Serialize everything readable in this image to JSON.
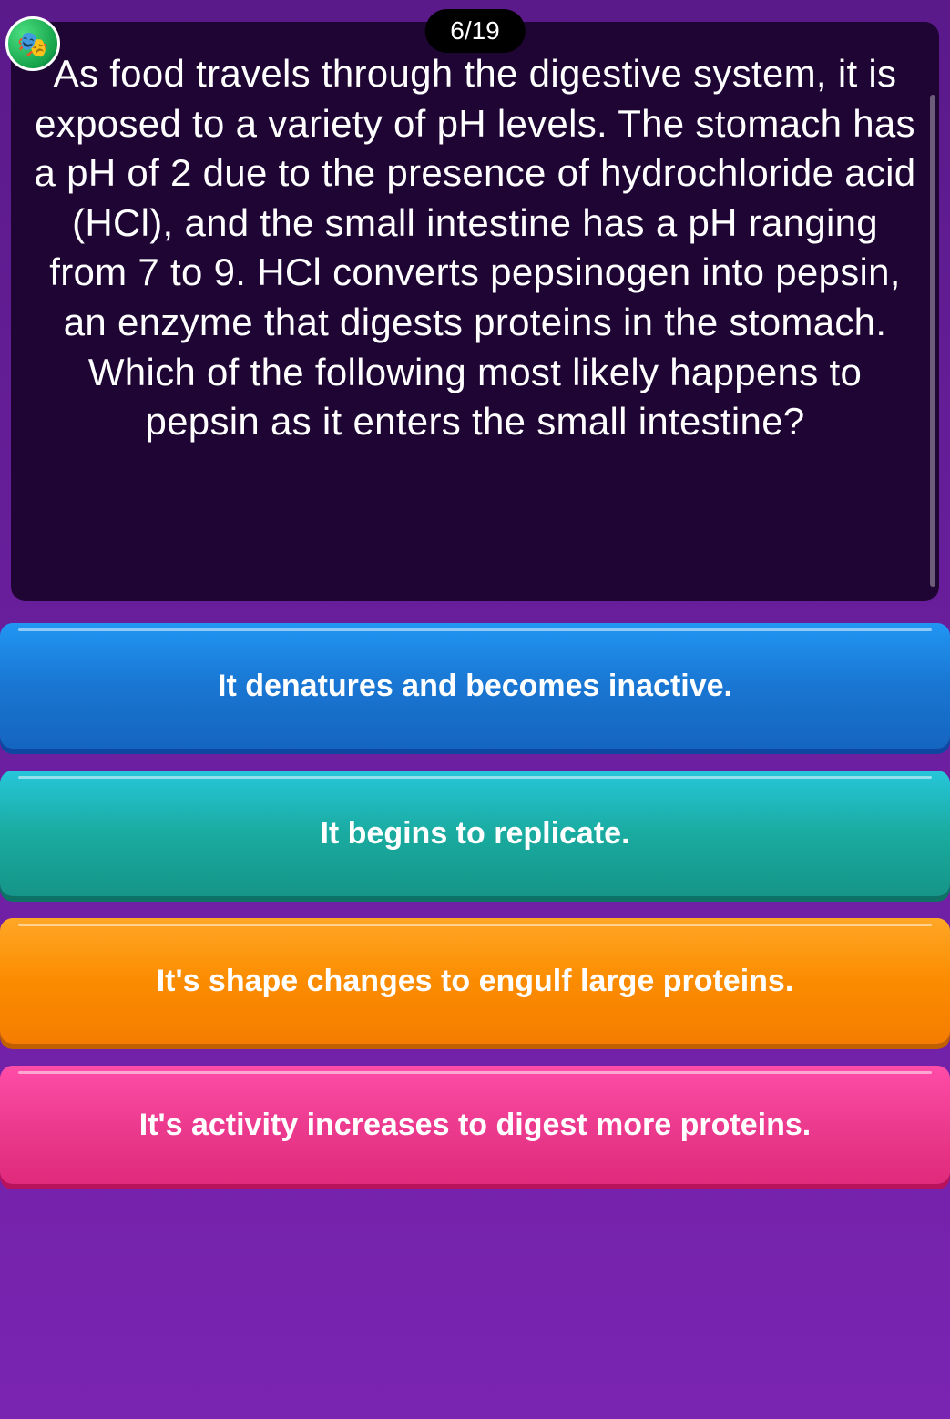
{
  "progress": {
    "counter": "6/19"
  },
  "avatar": {
    "emoji": "🎭"
  },
  "question": {
    "text": "As food travels through the digestive system, it is exposed to a variety of pH levels. The stomach has a pH of 2 due to the presence of hydrochloride acid (HCl), and the small intestine has a pH ranging from 7 to 9. HCl converts pepsinogen into pepsin, an enzyme that digests proteins in the stomach. Which of the following most likely happens to pepsin as it enters the small intestine?"
  },
  "answers": [
    {
      "label": "It denatures and becomes inactive.",
      "color_top": "#2196f3",
      "color_bottom": "#1565c0",
      "shadow": "#0d47a1"
    },
    {
      "label": "It begins to replicate.",
      "color_top": "#26c6da",
      "color_bottom": "#159588",
      "shadow": "#0d7166"
    },
    {
      "label": "It's shape changes to engulf large proteins.",
      "color_top": "#ffa726",
      "color_bottom": "#f57c00",
      "shadow": "#bf5f00"
    },
    {
      "label": "It's activity increases to digest more proteins.",
      "color_top": "#ff4da8",
      "color_bottom": "#e02a7c",
      "shadow": "#b8125c"
    }
  ],
  "styling": {
    "background_gradient_top": "#5a1a8a",
    "background_gradient_bottom": "#7a24b2",
    "question_card_bg": "#1e0533",
    "text_color": "#ffffff",
    "question_fontsize": 42,
    "answer_fontsize": 34,
    "counter_fontsize": 28,
    "answer_height": 138,
    "answer_gap": 24,
    "answer_border_radius": 14,
    "card_border_radius": 16
  }
}
